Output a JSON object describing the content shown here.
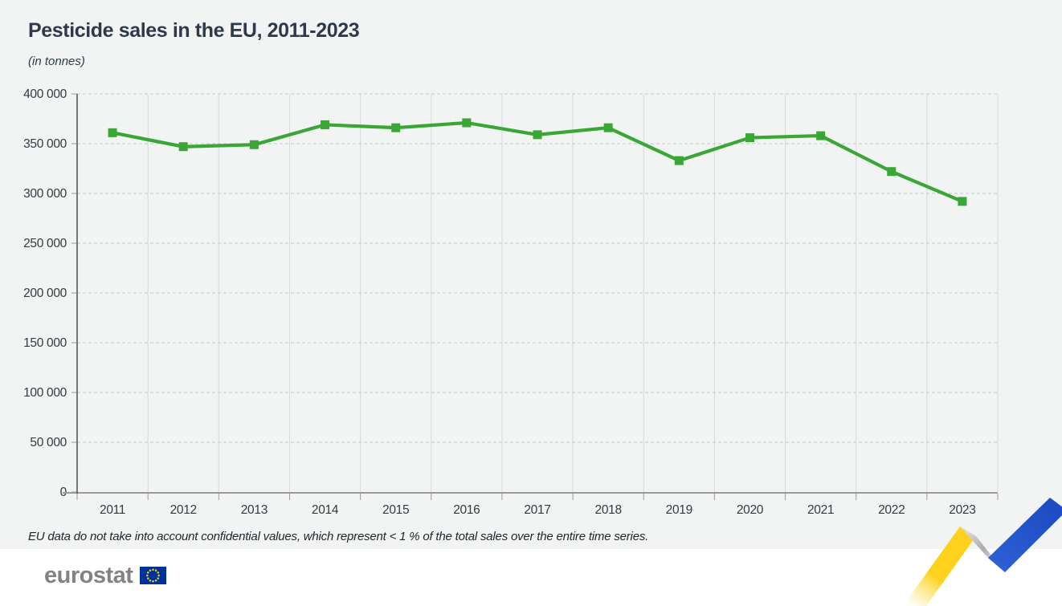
{
  "header": {
    "title": "Pesticide sales in the EU, 2011-2023",
    "subtitle": "(in tonnes)"
  },
  "chart_data": {
    "type": "line",
    "title": "Pesticide sales in the EU, 2011-2023",
    "unit": "tonnes",
    "categories": [
      "2011",
      "2012",
      "2013",
      "2014",
      "2015",
      "2016",
      "2017",
      "2018",
      "2019",
      "2020",
      "2021",
      "2022",
      "2023"
    ],
    "series": [
      {
        "name": "Pesticide sales in the EU",
        "color": "#3aa635",
        "marker": "square",
        "values": [
          361000,
          347000,
          349000,
          369000,
          366000,
          371000,
          359000,
          366000,
          333000,
          356000,
          358000,
          322000,
          292000
        ]
      }
    ],
    "ylim": [
      0,
      400000
    ],
    "yticks": [
      0,
      50000,
      100000,
      150000,
      200000,
      250000,
      300000,
      350000,
      400000
    ],
    "ytick_labels": [
      "0",
      "50 000",
      "100 000",
      "150 000",
      "200 000",
      "250 000",
      "300 000",
      "350 000",
      "400 000"
    ],
    "grid": {
      "horizontal": "dashed",
      "vertical": "solid"
    },
    "legend": "none"
  },
  "footnote": {
    "text": "EU data do not take into account confidential values, which represent < 1 % of the total sales over the entire time series."
  },
  "footer": {
    "logo_text": "eurostat"
  },
  "colors": {
    "background": "#f2f3f3",
    "footer_background": "#ffffff",
    "title_text": "#2e3a4c",
    "axis_text": "#333a42",
    "line_green": "#3aa635",
    "ribbon_yellow": "#fdd11c",
    "ribbon_gray": "#b4b6b9",
    "ribbon_blue": "#2453c8",
    "flag_blue": "#003399",
    "flag_stars": "#ffcc00"
  }
}
